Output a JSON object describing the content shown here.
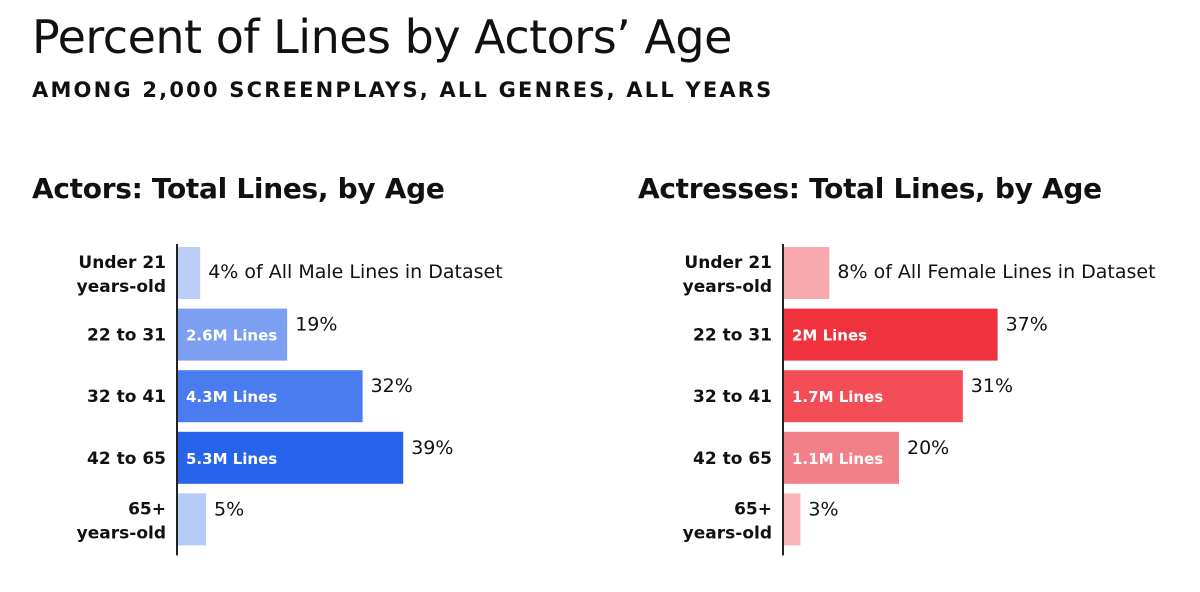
{
  "header": {
    "title": "Percent of Lines by Actors’ Age",
    "subtitle": "AMONG 2,000 SCREENPLAYS, ALL GENRES, ALL YEARS"
  },
  "chart_data": [
    {
      "type": "bar",
      "orientation": "horizontal",
      "title": "Actors: Total Lines, by Age",
      "categories": [
        [
          "Under 21",
          "years-old"
        ],
        [
          "22 to 31"
        ],
        [
          "32 to 41"
        ],
        [
          "42 to 65"
        ],
        [
          "65+",
          "years-old"
        ]
      ],
      "values": [
        4,
        19,
        32,
        39,
        5
      ],
      "value_labels": [
        "4% of All Male Lines in Dataset",
        "19%",
        "32%",
        "39%",
        "5%"
      ],
      "inner_labels": [
        "",
        "2.6M Lines",
        "4.3M Lines",
        "5.3M Lines",
        ""
      ],
      "colors": [
        "#bccdf8",
        "#7d9ff2",
        "#4a7cef",
        "#2763eb",
        "#b7cbf8"
      ],
      "xlim": [
        0,
        40
      ]
    },
    {
      "type": "bar",
      "orientation": "horizontal",
      "title": "Actresses: Total Lines, by Age",
      "categories": [
        [
          "Under 21",
          "years-old"
        ],
        [
          "22 to 31"
        ],
        [
          "32 to 41"
        ],
        [
          "42 to 65"
        ],
        [
          "65+",
          "years-old"
        ]
      ],
      "values": [
        8,
        37,
        31,
        20,
        3
      ],
      "value_labels": [
        "8% of All Female Lines in Dataset",
        "37%",
        "31%",
        "20%",
        "3%"
      ],
      "inner_labels": [
        "",
        "2M Lines",
        "1.7M Lines",
        "1.1M Lines",
        ""
      ],
      "colors": [
        "#f8a9ad",
        "#f0323e",
        "#f34d58",
        "#f28089",
        "#f9b5b9"
      ],
      "xlim": [
        0,
        40
      ]
    }
  ]
}
